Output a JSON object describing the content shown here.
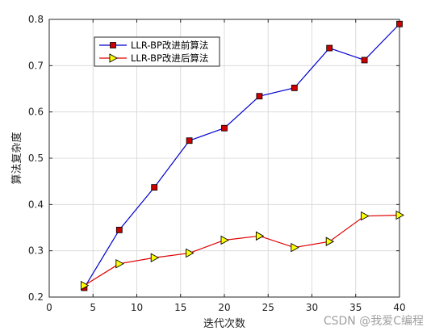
{
  "chart_data": {
    "type": "line",
    "title": "",
    "xlabel": "迭代次数",
    "ylabel": "算法复杂度",
    "xlim": [
      0,
      40
    ],
    "ylim": [
      0.2,
      0.8
    ],
    "xticks": [
      0,
      5,
      10,
      15,
      20,
      25,
      30,
      35,
      40
    ],
    "yticks": [
      0.2,
      0.3,
      0.4,
      0.5,
      0.6,
      0.7,
      0.8
    ],
    "grid": true,
    "legend_position": "upper-left",
    "x": [
      4,
      8,
      12,
      16,
      20,
      24,
      28,
      32,
      36,
      40
    ],
    "series": [
      {
        "name": "LLR-BP改进前算法",
        "color": "#0000cc",
        "marker": "square",
        "marker_fill": "#cc0000",
        "values": [
          0.22,
          0.345,
          0.437,
          0.538,
          0.565,
          0.634,
          0.652,
          0.738,
          0.712,
          0.79
        ]
      },
      {
        "name": "LLR-BP改进后算法",
        "color": "#dd0000",
        "marker": "triangle-right",
        "marker_fill": "#ffff00",
        "values": [
          0.225,
          0.272,
          0.285,
          0.295,
          0.323,
          0.332,
          0.307,
          0.32,
          0.375,
          0.377
        ]
      }
    ]
  },
  "watermark": "CSDN @我爱C编程"
}
